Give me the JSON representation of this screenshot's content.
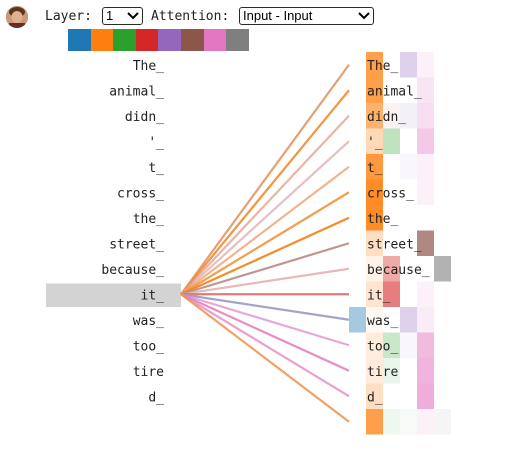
{
  "header": {
    "layer_label": "Layer:",
    "layer_value": "1",
    "attention_label": "Attention:",
    "attention_value": "Input - Input"
  },
  "swatch_colors": [
    "#1f77b4",
    "#ff7f0e",
    "#2ca02c",
    "#d62728",
    "#9467bd",
    "#8c564b",
    "#e377c2",
    "#7f7f7f"
  ],
  "left_tokens": [
    "The_",
    "animal_",
    "didn_",
    "'_",
    "t_",
    "cross_",
    "the_",
    "street_",
    "because_",
    "it_",
    "was_",
    "too_",
    "tire",
    "d_",
    ""
  ],
  "right_tokens": [
    "The_",
    "animal_",
    "didn_",
    "'_",
    "t_",
    "cross_",
    "the_",
    "street_",
    "because_",
    "it_",
    "was_",
    "too_",
    "tire",
    "d_",
    ""
  ],
  "selected_index": 9,
  "attention_lines": [
    {
      "to": 0,
      "color": "#e08e5a",
      "opacity": 0.85
    },
    {
      "to": 1,
      "color": "#f28a2c",
      "opacity": 0.9
    },
    {
      "to": 2,
      "color": "#e49a88",
      "opacity": 0.75
    },
    {
      "to": 3,
      "color": "#d9a6a6",
      "opacity": 0.7
    },
    {
      "to": 4,
      "color": "#f0a070",
      "opacity": 0.8
    },
    {
      "to": 5,
      "color": "#f2943e",
      "opacity": 0.9
    },
    {
      "to": 6,
      "color": "#f2861e",
      "opacity": 0.95
    },
    {
      "to": 7,
      "color": "#b98a82",
      "opacity": 0.9
    },
    {
      "to": 8,
      "color": "#e2a2a0",
      "opacity": 0.75
    },
    {
      "to": 9,
      "color": "#dc6b6b",
      "opacity": 0.9
    },
    {
      "to": 10,
      "color": "#9a9ac4",
      "opacity": 0.9
    },
    {
      "to": 11,
      "color": "#de8ac8",
      "opacity": 0.75
    },
    {
      "to": 12,
      "color": "#e07ab8",
      "opacity": 0.85
    },
    {
      "to": 13,
      "color": "#e48ac0",
      "opacity": 0.8
    },
    {
      "to": 14,
      "color": "#f0904a",
      "opacity": 0.85
    }
  ],
  "heatmap": [
    {
      "row": 0,
      "cells": [
        {
          "col": 0,
          "color": "#ff7f0e",
          "a": 0.75
        },
        {
          "col": 2,
          "color": "#9467bd",
          "a": 0.3
        },
        {
          "col": 3,
          "color": "#e377c2",
          "a": 0.1
        }
      ]
    },
    {
      "row": 1,
      "cells": [
        {
          "col": 0,
          "color": "#ff7f0e",
          "a": 0.75
        },
        {
          "col": 3,
          "color": "#e377c2",
          "a": 0.2
        }
      ]
    },
    {
      "row": 2,
      "cells": [
        {
          "col": 0,
          "color": "#ff7f0e",
          "a": 0.6
        },
        {
          "col": 1,
          "color": "#d62728",
          "a": 0.06
        },
        {
          "col": 2,
          "color": "#9467bd",
          "a": 0.1
        },
        {
          "col": 3,
          "color": "#e377c2",
          "a": 0.25
        }
      ]
    },
    {
      "row": 3,
      "cells": [
        {
          "col": 0,
          "color": "#ff7f0e",
          "a": 0.3
        },
        {
          "col": 1,
          "color": "#2ca02c",
          "a": 0.3
        },
        {
          "col": 3,
          "color": "#e377c2",
          "a": 0.4
        }
      ]
    },
    {
      "row": 4,
      "cells": [
        {
          "col": 0,
          "color": "#ff7f0e",
          "a": 0.8
        },
        {
          "col": 2,
          "color": "#9467bd",
          "a": 0.05
        },
        {
          "col": 3,
          "color": "#e377c2",
          "a": 0.1
        }
      ]
    },
    {
      "row": 5,
      "cells": [
        {
          "col": 0,
          "color": "#ff7f0e",
          "a": 0.9
        },
        {
          "col": 3,
          "color": "#e377c2",
          "a": 0.1
        }
      ]
    },
    {
      "row": 6,
      "cells": [
        {
          "col": 0,
          "color": "#ff7f0e",
          "a": 0.9
        }
      ]
    },
    {
      "row": 7,
      "cells": [
        {
          "col": 0,
          "color": "#ff7f0e",
          "a": 0.25
        },
        {
          "col": 3,
          "color": "#8c564b",
          "a": 0.7
        }
      ]
    },
    {
      "row": 8,
      "cells": [
        {
          "col": 0,
          "color": "#ff7f0e",
          "a": 0.1
        },
        {
          "col": 1,
          "color": "#d62728",
          "a": 0.4
        },
        {
          "col": 4,
          "color": "#7f7f7f",
          "a": 0.6
        }
      ]
    },
    {
      "row": 9,
      "cells": [
        {
          "col": 0,
          "color": "#ff7f0e",
          "a": 0.2
        },
        {
          "col": 1,
          "color": "#d62728",
          "a": 0.6
        },
        {
          "col": 3,
          "color": "#e377c2",
          "a": 0.1
        }
      ]
    },
    {
      "row": 10,
      "cells": [
        {
          "col": -1,
          "color": "#1f77b4",
          "a": 0.4
        },
        {
          "col": 0,
          "color": "#ff7f0e",
          "a": 0.05
        },
        {
          "col": 2,
          "color": "#9467bd",
          "a": 0.3
        },
        {
          "col": 3,
          "color": "#e377c2",
          "a": 0.15
        }
      ]
    },
    {
      "row": 11,
      "cells": [
        {
          "col": 0,
          "color": "#ff7f0e",
          "a": 0.15
        },
        {
          "col": 1,
          "color": "#2ca02c",
          "a": 0.25
        },
        {
          "col": 2,
          "color": "#9467bd",
          "a": 0.05
        },
        {
          "col": 3,
          "color": "#e377c2",
          "a": 0.5
        }
      ]
    },
    {
      "row": 12,
      "cells": [
        {
          "col": 0,
          "color": "#ff7f0e",
          "a": 0.15
        },
        {
          "col": 1,
          "color": "#2ca02c",
          "a": 0.1
        },
        {
          "col": 3,
          "color": "#e377c2",
          "a": 0.55
        }
      ]
    },
    {
      "row": 13,
      "cells": [
        {
          "col": 0,
          "color": "#ff7f0e",
          "a": 0.25
        },
        {
          "col": 3,
          "color": "#e377c2",
          "a": 0.6
        }
      ]
    },
    {
      "row": 14,
      "cells": [
        {
          "col": 0,
          "color": "#ff7f0e",
          "a": 0.75
        },
        {
          "col": 1,
          "color": "#2ca02c",
          "a": 0.08
        },
        {
          "col": 2,
          "color": "#2ca02c",
          "a": 0.04
        },
        {
          "col": 3,
          "color": "#e377c2",
          "a": 0.1
        },
        {
          "col": 4,
          "color": "#7f7f7f",
          "a": 0.08
        }
      ]
    }
  ]
}
